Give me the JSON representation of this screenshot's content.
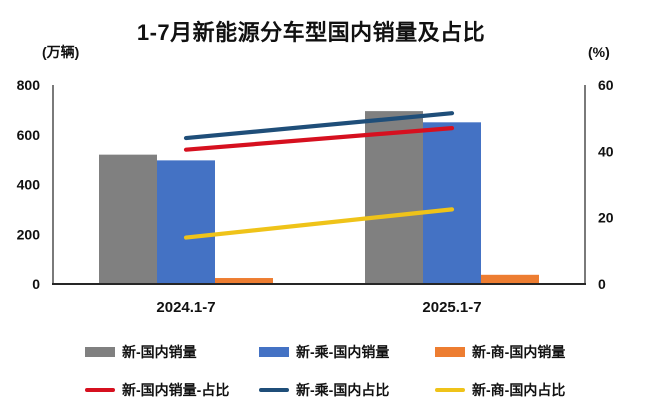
{
  "chart_data": {
    "type": "bar+line",
    "title": "1-7月新能源分车型国内销量及占比",
    "categories": [
      "2024.1-7",
      "2025.1-7"
    ],
    "left_axis": {
      "unit": "(万辆)",
      "ticks": [
        0,
        200,
        400,
        600,
        800
      ],
      "range": [
        0,
        800
      ]
    },
    "right_axis": {
      "unit": "(%)",
      "ticks": [
        0,
        20,
        40,
        60
      ],
      "range": [
        0,
        60
      ]
    },
    "bar_series": [
      {
        "name": "新-国内销量",
        "color": "#808080",
        "values": [
          520,
          695
        ]
      },
      {
        "name": "新-乘-国内销量",
        "color": "#4472C4",
        "values": [
          497,
          650
        ]
      },
      {
        "name": "新-商-国内销量",
        "color": "#ED7D31",
        "values": [
          24,
          37
        ]
      }
    ],
    "line_series": [
      {
        "name": "新-国内销量-占比",
        "color": "#D6101F",
        "values": [
          40.5,
          47
        ]
      },
      {
        "name": "新-乘-国内占比",
        "color": "#1F4E79",
        "values": [
          44,
          51.5
        ]
      },
      {
        "name": "新-商-国内占比",
        "color": "#EFC319",
        "values": [
          14,
          22.5
        ]
      }
    ],
    "grid": false,
    "legend_position": "bottom",
    "colors": {
      "axis_line": "#595959",
      "baseline": "#262626",
      "background": "#ffffff"
    }
  }
}
